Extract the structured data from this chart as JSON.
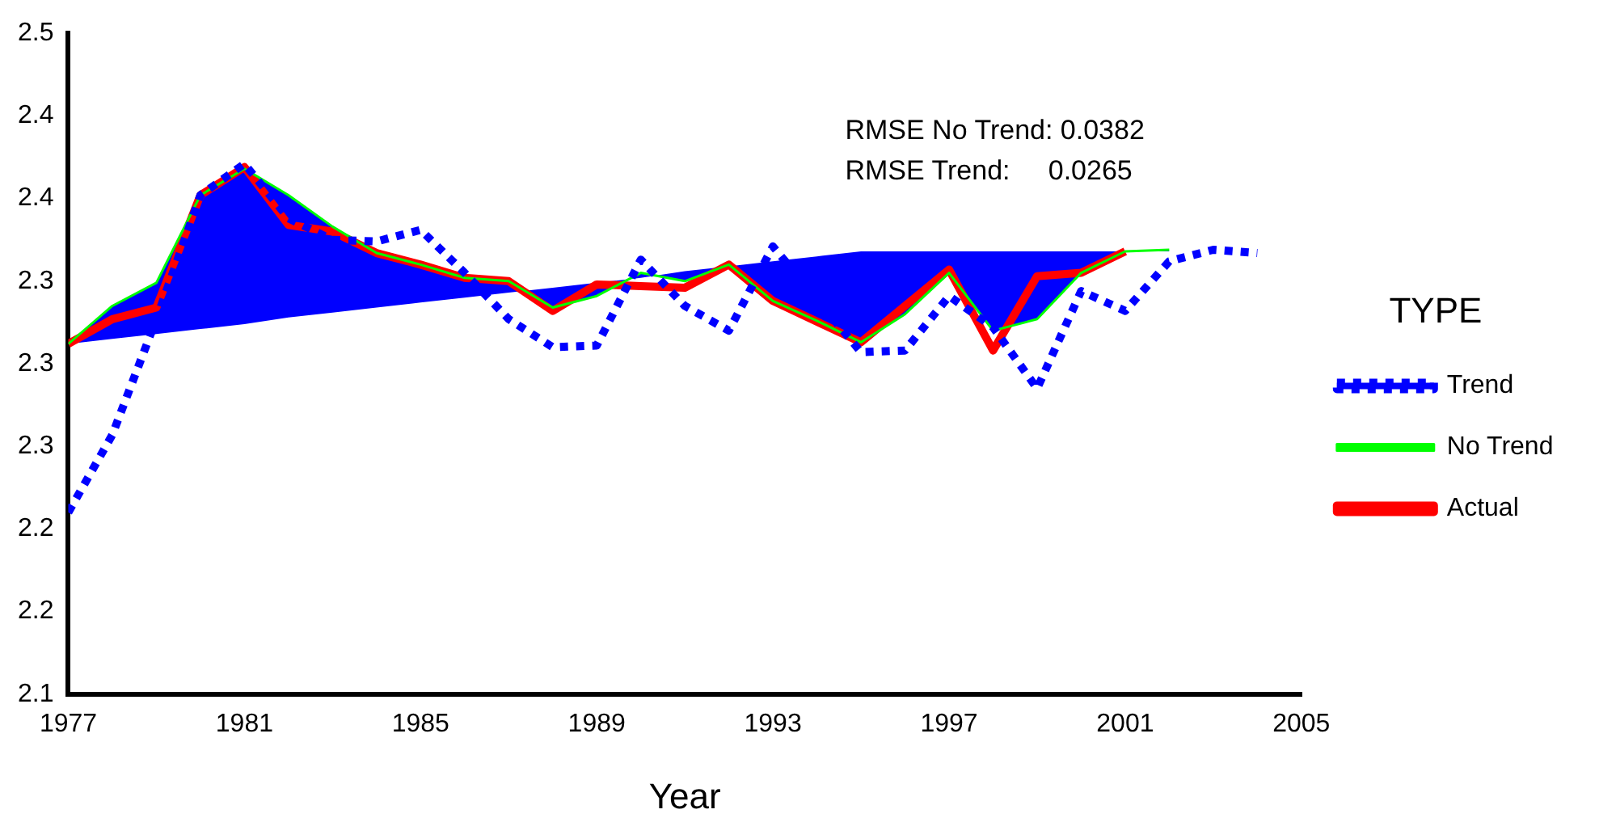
{
  "chart_data": {
    "type": "line",
    "xlabel": "Year",
    "legend_title": "TYPE",
    "legend": "right",
    "grid": false,
    "marker": "none",
    "xlim": [
      1977,
      2005
    ],
    "xticks": [
      1977,
      1981,
      1985,
      1989,
      1993,
      1997,
      2001,
      2005
    ],
    "ylim": [
      2.1,
      2.5
    ],
    "yticks": [
      {
        "value": 2.1,
        "label": "2.1"
      },
      {
        "value": 2.15,
        "label": "2.2"
      },
      {
        "value": 2.2,
        "label": "2.2"
      },
      {
        "value": 2.25,
        "label": "2.3"
      },
      {
        "value": 2.3,
        "label": "2.3"
      },
      {
        "value": 2.35,
        "label": "2.3"
      },
      {
        "value": 2.4,
        "label": "2.4"
      },
      {
        "value": 2.45,
        "label": "2.4"
      },
      {
        "value": 2.5,
        "label": "2.5"
      }
    ],
    "annotations": [
      "RMSE No Trend: 0.0382",
      "RMSE Trend:     0.0265"
    ],
    "series": [
      {
        "name": "Actual",
        "color": "#ff0000",
        "line_style": "solid",
        "x": [
          1977,
          1978,
          1979,
          1980,
          1981,
          1982,
          1983,
          1984,
          1985,
          1986,
          1987,
          1988,
          1989,
          1990,
          1991,
          1992,
          1993,
          1995,
          1997,
          1998,
          1999,
          2000,
          2001
        ],
        "values": [
          2.312,
          2.327,
          2.334,
          2.402,
          2.419,
          2.384,
          2.38,
          2.367,
          2.36,
          2.352,
          2.35,
          2.332,
          2.348,
          2.347,
          2.346,
          2.36,
          2.338,
          2.313,
          2.357,
          2.308,
          2.353,
          2.355,
          2.368
        ]
      },
      {
        "name": "No Trend",
        "color": "#00ff00",
        "line_style": "solid",
        "x": [
          1977,
          1978,
          1979,
          1980,
          1981,
          1982,
          1983,
          1984,
          1985,
          1986,
          1987,
          1988,
          1989,
          1990,
          1991,
          1992,
          1993,
          1994,
          1995,
          1996,
          1997,
          1998,
          1999,
          2000,
          2001,
          2002
        ],
        "values": [
          2.312,
          2.335,
          2.349,
          2.402,
          2.418,
          2.402,
          2.383,
          2.367,
          2.36,
          2.352,
          2.35,
          2.334,
          2.341,
          2.355,
          2.35,
          2.36,
          2.338,
          2.326,
          2.313,
          2.33,
          2.355,
          2.32,
          2.327,
          2.355,
          2.368,
          2.369
        ],
        "lower": [
          2.312,
          2.315,
          2.318,
          2.321,
          2.324,
          2.328,
          2.331,
          2.334,
          2.337,
          2.34,
          2.343,
          2.346,
          2.349,
          2.352,
          2.356,
          2.359,
          2.362,
          2.365,
          2.368,
          2.368,
          2.368,
          2.368,
          2.368,
          2.368,
          2.368,
          2.368
        ],
        "upper": [
          2.312,
          2.335,
          2.349,
          2.402,
          2.418,
          2.402,
          2.383,
          2.367,
          2.36,
          2.352,
          2.35,
          2.334,
          2.341,
          2.355,
          2.35,
          2.36,
          2.338,
          2.326,
          2.313,
          2.33,
          2.355,
          2.32,
          2.327,
          2.355,
          2.368,
          2.369
        ]
      },
      {
        "name": "Trend",
        "color": "#0000ff",
        "line_style": "dotted",
        "x": [
          1977,
          1978,
          1979,
          1980,
          1981,
          1982,
          1983,
          1984,
          1985,
          1986,
          1987,
          1988,
          1989,
          1990,
          1991,
          1992,
          1993,
          1995,
          1996,
          1997,
          1998,
          1999,
          2000,
          2001,
          2002,
          2003,
          2004
        ],
        "values": [
          2.21,
          2.257,
          2.327,
          2.402,
          2.421,
          2.388,
          2.375,
          2.374,
          2.381,
          2.355,
          2.327,
          2.31,
          2.311,
          2.363,
          2.335,
          2.32,
          2.371,
          2.307,
          2.308,
          2.341,
          2.322,
          2.285,
          2.344,
          2.332,
          2.362,
          2.369,
          2.367
        ]
      }
    ]
  }
}
